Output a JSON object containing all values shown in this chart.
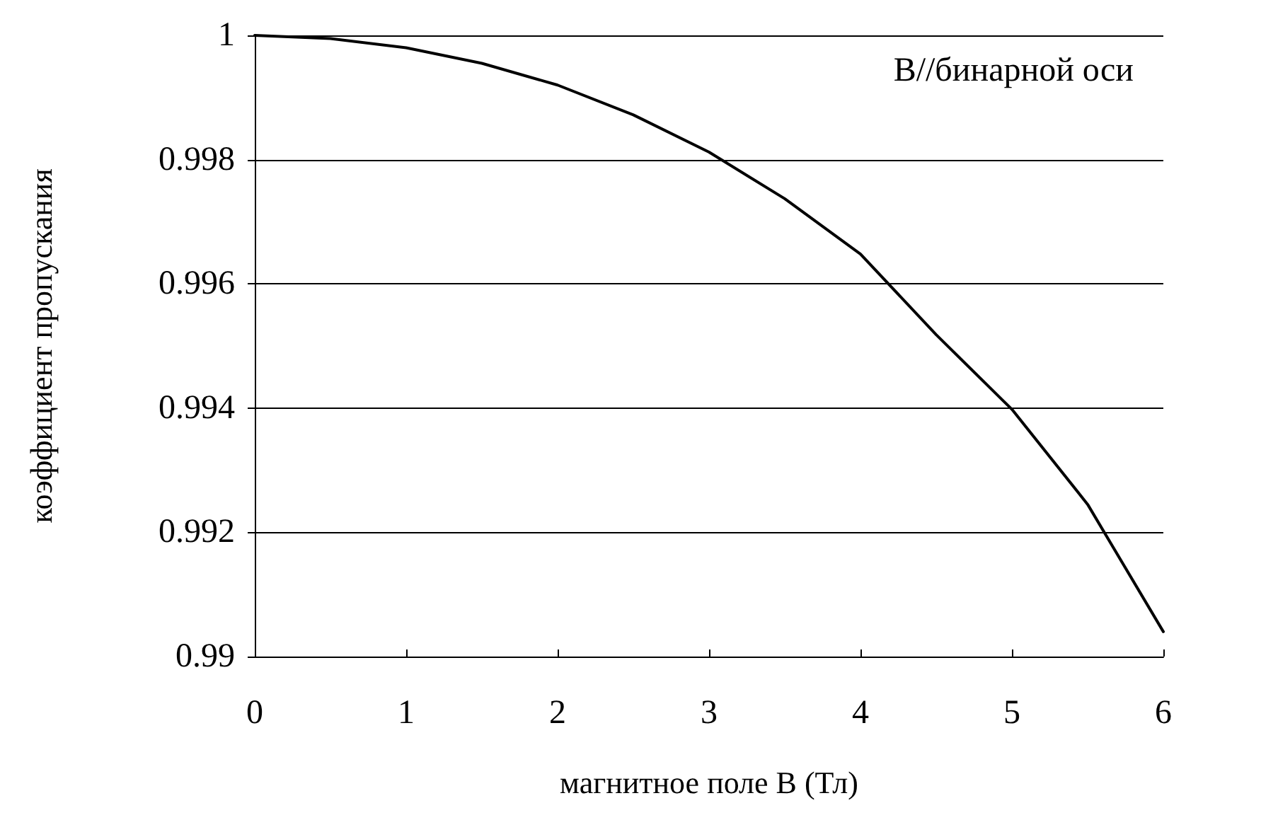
{
  "chart_data": {
    "type": "line",
    "xlabel": "магнитное поле B (Тл)",
    "ylabel": "коэффициент пропускания",
    "annotations": [
      "B//бинарной оси"
    ],
    "x": [
      0,
      0.5,
      1,
      1.5,
      2,
      2.5,
      3,
      3.5,
      4,
      4.5,
      5,
      5.5,
      6
    ],
    "series": [
      {
        "color": "#000000",
        "values": [
          1,
          0.99995,
          0.9998,
          0.99955,
          0.9992,
          0.99872,
          0.99812,
          0.99737,
          0.99648,
          0.99518,
          0.99398,
          0.99245,
          0.9904
        ]
      }
    ],
    "xlim": [
      0,
      6
    ],
    "xticks": [
      0,
      1,
      2,
      3,
      4,
      5,
      6
    ],
    "ylim": [
      0.99,
      1
    ],
    "yticks": [
      0.99,
      0.992,
      0.994,
      0.996,
      0.998,
      1
    ],
    "grid": "y",
    "marker": "none",
    "line_style": "solid"
  }
}
